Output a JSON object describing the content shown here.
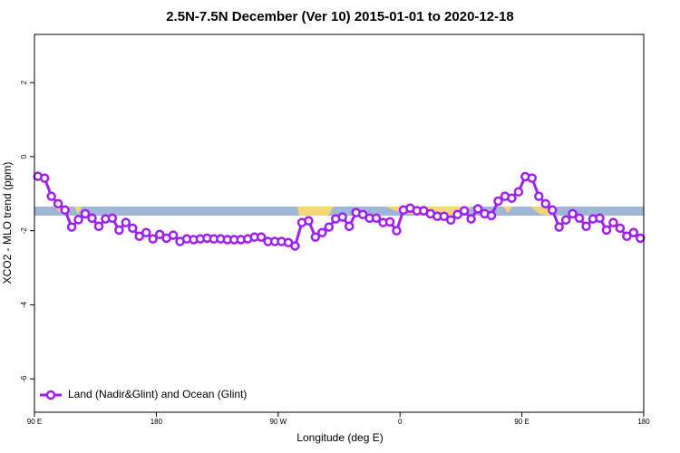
{
  "chart_data": {
    "type": "line",
    "title": "2.5N-7.5N December (Ver 10)   2015-01-01 to 2020-12-18",
    "x_label": "Longitude (deg E)",
    "y_label": "XCO2 - MLO trend (ppm)",
    "x": [
      92.5,
      97.5,
      102.5,
      107.5,
      112.5,
      117.5,
      122.5,
      127.5,
      132.5,
      137.5,
      142.5,
      147.5,
      152.5,
      157.5,
      162.5,
      167.5,
      172.5,
      177.5,
      182.5,
      187.5,
      192.5,
      197.5,
      202.5,
      207.5,
      212.5,
      217.5,
      222.5,
      227.5,
      232.5,
      237.5,
      242.5,
      247.5,
      252.5,
      257.5,
      262.5,
      267.5,
      272.5,
      277.5,
      282.5,
      287.5,
      292.5,
      297.5,
      302.5,
      307.5,
      312.5,
      317.5,
      322.5,
      327.5,
      332.5,
      337.5,
      342.5,
      347.5,
      352.5,
      357.5,
      362.5,
      367.5,
      372.5,
      377.5,
      382.5,
      387.5,
      392.5,
      397.5,
      402.5,
      407.5,
      412.5,
      417.5,
      422.5,
      427.5,
      432.5,
      437.5,
      442.5,
      447.5,
      452.5,
      457.5,
      462.5,
      467.5,
      472.5,
      477.5,
      482.5,
      487.5,
      492.5,
      497.5,
      502.5,
      507.5,
      512.5,
      517.5,
      522.5,
      527.5,
      532.5,
      537.5
    ],
    "series": [
      {
        "name": "Land (Nadir&Glint) and Ocean (Glint)",
        "color": "#a020f0",
        "values": [
          -0.53,
          -0.58,
          -1.07,
          -1.27,
          -1.44,
          -1.9,
          -1.7,
          -1.54,
          -1.66,
          -1.88,
          -1.68,
          -1.66,
          -1.98,
          -1.78,
          -1.93,
          -2.15,
          -2.05,
          -2.22,
          -2.1,
          -2.2,
          -2.12,
          -2.29,
          -2.22,
          -2.24,
          -2.22,
          -2.2,
          -2.22,
          -2.22,
          -2.24,
          -2.24,
          -2.24,
          -2.22,
          -2.17,
          -2.17,
          -2.29,
          -2.29,
          -2.29,
          -2.32,
          -2.41,
          -1.78,
          -1.73,
          -2.17,
          -2.05,
          -1.9,
          -1.68,
          -1.63,
          -1.88,
          -1.51,
          -1.56,
          -1.66,
          -1.66,
          -1.78,
          -1.76,
          -2.0,
          -1.44,
          -1.39,
          -1.46,
          -1.46,
          -1.54,
          -1.61,
          -1.61,
          -1.71,
          -1.56,
          -1.46,
          -1.68,
          -1.41,
          -1.54,
          -1.59,
          -1.2,
          -1.07,
          -1.12,
          -0.95,
          -0.54,
          -0.58,
          -1.07,
          -1.27,
          -1.44,
          -1.9,
          -1.71,
          -1.54,
          -1.66,
          -1.88,
          -1.68,
          -1.66,
          -1.98,
          -1.78,
          -1.93,
          -2.15,
          -2.05,
          -2.2
        ]
      }
    ],
    "xlim": [
      90,
      540
    ],
    "xticks": [
      {
        "value": 90,
        "label": "90 E"
      },
      180,
      {
        "value": 270,
        "label": "90 W"
      },
      {
        "value": 360,
        "label": "0"
      },
      {
        "value": 450,
        "label": "90 E"
      },
      {
        "value": 540,
        "label": "180"
      }
    ],
    "ylim": [
      -6.9,
      3.3
    ],
    "yticks": [
      -6,
      -4,
      -2,
      0,
      2
    ],
    "legend": "bottom-left"
  }
}
